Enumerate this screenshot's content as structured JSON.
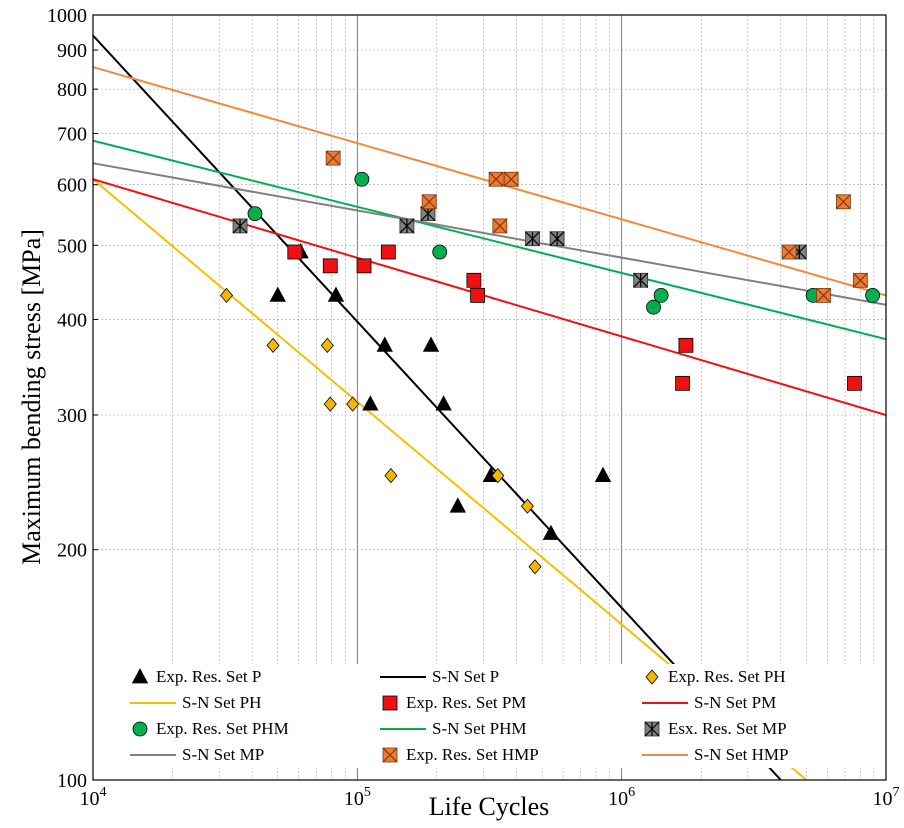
{
  "chart_data": {
    "type": "scatter",
    "title": "",
    "xlabel": "Life Cycles",
    "ylabel": "Maximum bending stress [MPa]",
    "x_scale": "log",
    "y_scale": "log",
    "xlim": [
      10000,
      10000000
    ],
    "ylim": [
      100,
      1000
    ],
    "grid": true,
    "legend_position": "bottom",
    "x_ticks": [
      {
        "value": 10000,
        "base": "10",
        "exp": "4"
      },
      {
        "value": 100000,
        "base": "10",
        "exp": "5"
      },
      {
        "value": 1000000,
        "base": "10",
        "exp": "6"
      },
      {
        "value": 10000000,
        "base": "10",
        "exp": "7"
      }
    ],
    "y_ticks": [
      {
        "value": 100,
        "label": "100"
      },
      {
        "value": 200,
        "label": "200"
      },
      {
        "value": 300,
        "label": "300"
      },
      {
        "value": 400,
        "label": "400"
      },
      {
        "value": 500,
        "label": "500"
      },
      {
        "value": 600,
        "label": "600"
      },
      {
        "value": 700,
        "label": "700"
      },
      {
        "value": 800,
        "label": "800"
      },
      {
        "value": 900,
        "label": "900"
      },
      {
        "value": 1000,
        "label": "1000"
      }
    ],
    "series": [
      {
        "name": "Exp. Res. Set P",
        "kind": "points",
        "marker": "triangle",
        "color": "#000000",
        "points": [
          [
            50000,
            430
          ],
          [
            61000,
            490
          ],
          [
            83000,
            430
          ],
          [
            112000,
            310
          ],
          [
            127000,
            370
          ],
          [
            190000,
            370
          ],
          [
            212000,
            310
          ],
          [
            240000,
            228
          ],
          [
            320000,
            250
          ],
          [
            540000,
            210
          ],
          [
            850000,
            250
          ]
        ]
      },
      {
        "name": "S-N Set P",
        "kind": "line",
        "color": "#000000",
        "points": [
          [
            10000,
            940
          ],
          [
            4000000,
            100
          ]
        ]
      },
      {
        "name": "Exp. Res. Set PH",
        "kind": "points",
        "marker": "diamond",
        "color": "#f5b800",
        "points": [
          [
            32000,
            430
          ],
          [
            48000,
            370
          ],
          [
            77000,
            370
          ],
          [
            79000,
            310
          ],
          [
            96000,
            310
          ],
          [
            134000,
            250
          ],
          [
            340000,
            250
          ],
          [
            440000,
            228
          ],
          [
            470000,
            190
          ]
        ]
      },
      {
        "name": "S-N Set PH",
        "kind": "line",
        "color": "#f5c000",
        "points": [
          [
            10000,
            610
          ],
          [
            5000000,
            100
          ]
        ]
      },
      {
        "name": "Exp. Res. Set PM",
        "kind": "points",
        "marker": "square",
        "color": "#ee1111",
        "points": [
          [
            58000,
            490
          ],
          [
            79000,
            470
          ],
          [
            106000,
            470
          ],
          [
            131000,
            490
          ],
          [
            276000,
            450
          ],
          [
            285000,
            430
          ],
          [
            1700000,
            330
          ],
          [
            1750000,
            370
          ],
          [
            7600000,
            330
          ]
        ]
      },
      {
        "name": "S-N Set PM",
        "kind": "line",
        "color": "#ee1111",
        "points": [
          [
            10000,
            610
          ],
          [
            10000000,
            300
          ]
        ]
      },
      {
        "name": "Exp. Res. Set PHM",
        "kind": "points",
        "marker": "circle",
        "color": "#00b050",
        "points": [
          [
            41000,
            550
          ],
          [
            104000,
            610
          ],
          [
            205000,
            490
          ],
          [
            1320000,
            415
          ],
          [
            1410000,
            430
          ],
          [
            5300000,
            430
          ],
          [
            8900000,
            430
          ]
        ]
      },
      {
        "name": "S-N Set PHM",
        "kind": "line",
        "color": "#00b050",
        "points": [
          [
            10000,
            685
          ],
          [
            10000000,
            377
          ]
        ]
      },
      {
        "name": "Esx. Res. Set MP",
        "kind": "points",
        "marker": "asterisk-square",
        "color": "#808080",
        "points": [
          [
            36000,
            530
          ],
          [
            154000,
            530
          ],
          [
            185000,
            550
          ],
          [
            460000,
            510
          ],
          [
            570000,
            510
          ],
          [
            1180000,
            450
          ],
          [
            4700000,
            490
          ]
        ]
      },
      {
        "name": "S-N Set MP",
        "kind": "line",
        "color": "#808080",
        "points": [
          [
            10000,
            640
          ],
          [
            10000000,
            418
          ]
        ]
      },
      {
        "name": "Exp. Res. Set HMP",
        "kind": "points",
        "marker": "x-square",
        "color": "#f07a30",
        "points": [
          [
            81000,
            650
          ],
          [
            187000,
            570
          ],
          [
            335000,
            610
          ],
          [
            346000,
            530
          ],
          [
            382000,
            610
          ],
          [
            4300000,
            490
          ],
          [
            5800000,
            430
          ],
          [
            6900000,
            570
          ],
          [
            8000000,
            450
          ]
        ]
      },
      {
        "name": "S-N Set HMP",
        "kind": "line",
        "color": "#f08a40",
        "points": [
          [
            10000,
            855
          ],
          [
            10000000,
            430
          ]
        ]
      }
    ]
  }
}
